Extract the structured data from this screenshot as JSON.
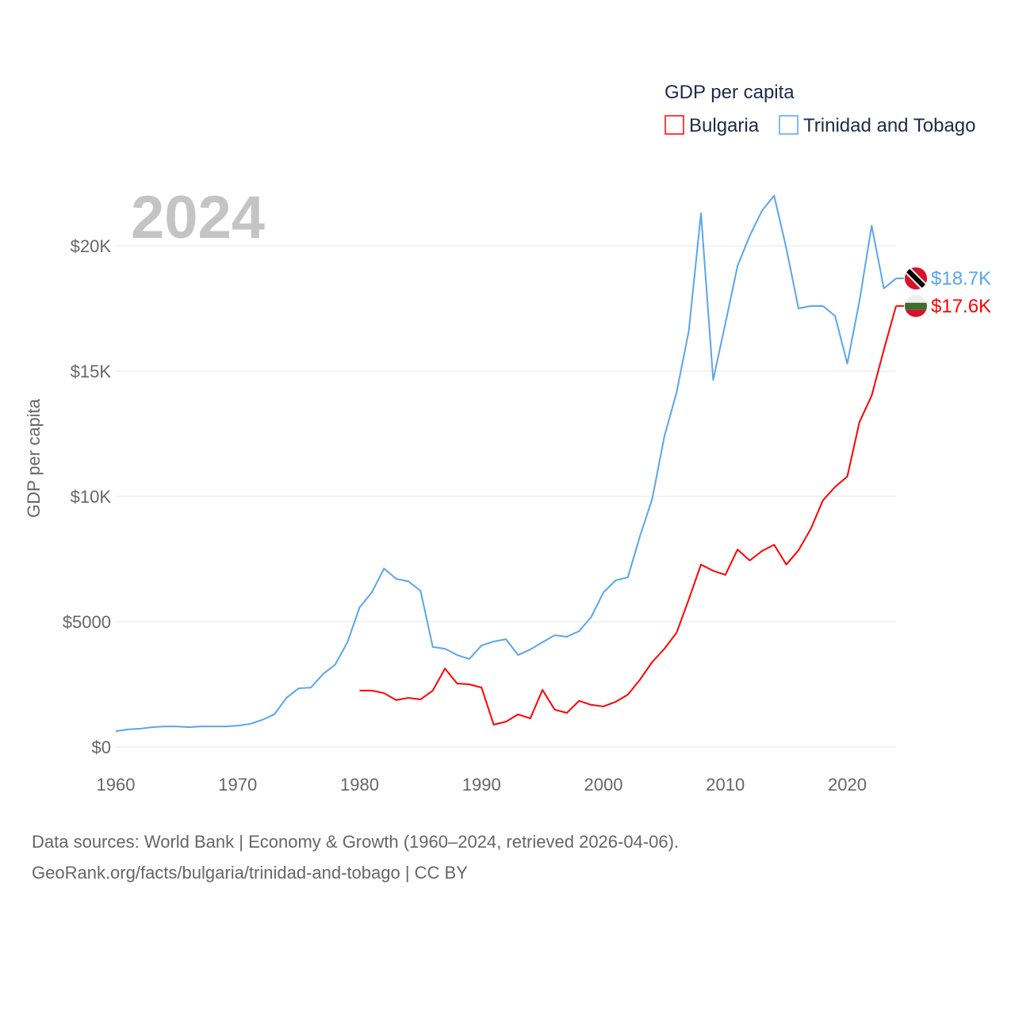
{
  "chart_data": {
    "type": "line",
    "title": "GDP per capita",
    "year_label": "2024",
    "ylabel": "GDP per capita",
    "xlabel": "",
    "xlim": [
      1960,
      2024
    ],
    "ylim": [
      0,
      22000
    ],
    "grid": true,
    "legend_placement": "top-right",
    "x_ticks": [
      1960,
      1970,
      1980,
      1990,
      2000,
      2010,
      2020
    ],
    "x_tick_labels": [
      "1960",
      "1970",
      "1980",
      "1990",
      "2000",
      "2010",
      "2020"
    ],
    "y_ticks": [
      0,
      5000,
      10000,
      15000,
      20000
    ],
    "y_tick_labels": [
      "$0",
      "$5000",
      "$10K",
      "$15K",
      "$20K"
    ],
    "series": [
      {
        "name": "Bulgaria",
        "color": "#ff0000",
        "end_label": "$17.6K",
        "flag": "bulgaria-flag",
        "start_year": 1980,
        "values": [
          2250,
          2250,
          2150,
          1870,
          1960,
          1900,
          2250,
          3130,
          2530,
          2500,
          2370,
          890,
          1010,
          1300,
          1140,
          2280,
          1490,
          1360,
          1840,
          1680,
          1620,
          1800,
          2090,
          2690,
          3390,
          3920,
          4560,
          5890,
          7280,
          7030,
          6870,
          7880,
          7440,
          7820,
          8070,
          7280,
          7850,
          8700,
          9840,
          10380,
          10790,
          12970,
          14020,
          15850,
          17600
        ]
      },
      {
        "name": "Trinidad and Tobago",
        "color": "#5aa5ee",
        "end_label": "$18.7K",
        "flag": "trinidad-and-tobago-flag",
        "start_year": 1960,
        "values": [
          630,
          700,
          730,
          790,
          820,
          820,
          790,
          820,
          820,
          820,
          850,
          920,
          1080,
          1300,
          1960,
          2340,
          2370,
          2910,
          3290,
          4180,
          5570,
          6170,
          7120,
          6710,
          6610,
          6230,
          3990,
          3920,
          3670,
          3510,
          4050,
          4210,
          4300,
          3670,
          3890,
          4180,
          4460,
          4400,
          4620,
          5190,
          6170,
          6650,
          6770,
          8420,
          9900,
          12400,
          14150,
          16600,
          21300,
          14650,
          16900,
          19200,
          20400,
          21400,
          22000,
          19900,
          17500,
          17600,
          17600,
          17200,
          15300,
          17800,
          20800,
          18300,
          18700
        ]
      }
    ]
  },
  "footer": {
    "line1": "Data sources: World Bank | Economy & Growth (1960–2024, retrieved 2026-04-06).",
    "line2": "GeoRank.org/facts/bulgaria/trinidad-and-tobago | CC BY"
  }
}
